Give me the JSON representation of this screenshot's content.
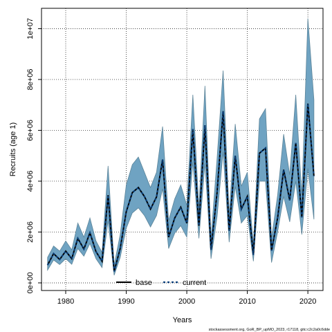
{
  "chart_data": {
    "type": "line",
    "xlabel": "Years",
    "ylabel": "Recruits (age 1)",
    "xlim": [
      1976,
      2022.5
    ],
    "ylim": [
      -300000,
      10800000
    ],
    "x_ticks": [
      1980,
      1990,
      2000,
      2010,
      2020
    ],
    "x_tick_labels": [
      "1980",
      "1990",
      "2000",
      "2010",
      "2020"
    ],
    "y_ticks": [
      0,
      2000000,
      4000000,
      6000000,
      8000000,
      10000000
    ],
    "y_tick_labels": [
      "0e+00",
      "2e+06",
      "4e+06",
      "6e+06",
      "8e+06",
      "1e+07"
    ],
    "grid": true,
    "legend_position": "bottom-center",
    "x": [
      1977,
      1978,
      1979,
      1980,
      1981,
      1982,
      1983,
      1984,
      1985,
      1986,
      1987,
      1988,
      1989,
      1990,
      1991,
      1992,
      1993,
      1994,
      1995,
      1996,
      1997,
      1998,
      1999,
      2000,
      2001,
      2002,
      2003,
      2004,
      2005,
      2006,
      2007,
      2008,
      2009,
      2010,
      2011,
      2012,
      2013,
      2014,
      2015,
      2016,
      2017,
      2018,
      2019,
      2020,
      2021
    ],
    "series": [
      {
        "name": "base",
        "style": "solid",
        "color": "#000000",
        "values": [
          700000,
          1150000,
          920000,
          1250000,
          950000,
          1750000,
          1330000,
          1970000,
          1230000,
          850000,
          3450000,
          450000,
          1350000,
          2800000,
          3550000,
          3750000,
          3400000,
          2900000,
          3380000,
          4850000,
          1800000,
          2550000,
          2980000,
          2350000,
          6050000,
          2250000,
          6200000,
          1300000,
          3550000,
          6750000,
          2050000,
          5000000,
          2900000,
          3400000,
          1100000,
          5100000,
          5300000,
          1270000,
          2550000,
          4450000,
          3250000,
          5500000,
          2580000,
          7050000,
          4200000
        ]
      },
      {
        "name": "current",
        "style": "dashed",
        "color": "#0a3f7a",
        "values": [
          700000,
          1150000,
          920000,
          1250000,
          950000,
          1750000,
          1330000,
          1970000,
          1230000,
          850000,
          3450000,
          450000,
          1350000,
          2800000,
          3550000,
          3750000,
          3400000,
          2900000,
          3380000,
          4850000,
          1800000,
          2550000,
          2980000,
          2350000,
          6050000,
          2250000,
          6200000,
          1300000,
          3550000,
          6750000,
          2050000,
          5000000,
          2900000,
          3400000,
          1100000,
          5100000,
          5300000,
          1270000,
          2550000,
          4450000,
          3250000,
          5500000,
          2580000,
          7050000,
          4200000
        ]
      }
    ],
    "band": {
      "color": "#6fa3c2",
      "lower": [
        500000,
        900000,
        720000,
        950000,
        730000,
        1350000,
        1050000,
        1550000,
        950000,
        600000,
        2450000,
        300000,
        1000000,
        2150000,
        2750000,
        2950000,
        2650000,
        2200000,
        2650000,
        3700000,
        1350000,
        1950000,
        2250000,
        1800000,
        4750000,
        1750000,
        4700000,
        950000,
        2600000,
        5150000,
        1600000,
        3800000,
        2350000,
        2650000,
        850000,
        4000000,
        4000000,
        800000,
        2000000,
        3400000,
        2400000,
        4000000,
        1900000,
        4500000,
        2500000
      ],
      "upper": [
        1000000,
        1450000,
        1250000,
        1650000,
        1300000,
        2350000,
        1800000,
        2550000,
        1650000,
        1200000,
        4600000,
        700000,
        1900000,
        3850000,
        4650000,
        4950000,
        4350000,
        3750000,
        4350000,
        6150000,
        2450000,
        3300000,
        3850000,
        3050000,
        7400000,
        2950000,
        7750000,
        1750000,
        4900000,
        8350000,
        2700000,
        6250000,
        3800000,
        4350000,
        1500000,
        6450000,
        6850000,
        1750000,
        3450000,
        5850000,
        4250000,
        7400000,
        3450000,
        10400000,
        7200000
      ]
    }
  },
  "footer_text": "stockassessment.org, GoR_BP_upMO_2023, r17118, gitc:c2c2a0c6dde"
}
